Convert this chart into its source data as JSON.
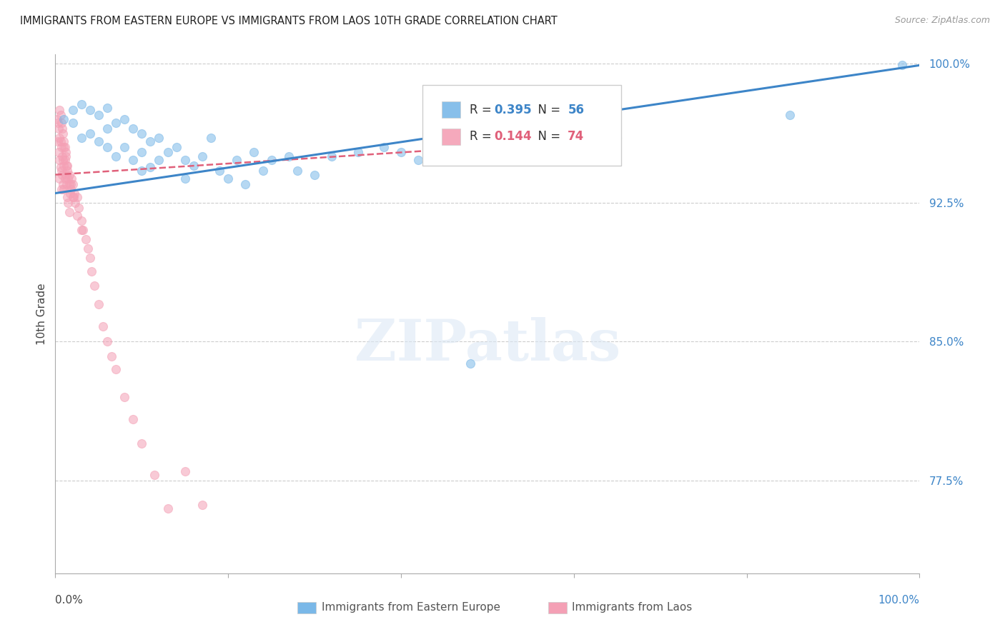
{
  "title": "IMMIGRANTS FROM EASTERN EUROPE VS IMMIGRANTS FROM LAOS 10TH GRADE CORRELATION CHART",
  "source": "Source: ZipAtlas.com",
  "ylabel": "10th Grade",
  "xlim": [
    0.0,
    1.0
  ],
  "ylim": [
    0.725,
    1.005
  ],
  "yticks": [
    0.775,
    0.85,
    0.925,
    1.0
  ],
  "ytick_labels": [
    "77.5%",
    "85.0%",
    "92.5%",
    "100.0%"
  ],
  "blue_color": "#7ab8e8",
  "pink_color": "#f4a0b5",
  "blue_line_color": "#3d85c8",
  "pink_line_color": "#e0607a",
  "scatter_alpha": 0.55,
  "marker_size": 75,
  "blue_r": 0.395,
  "blue_n": 56,
  "pink_r": 0.144,
  "pink_n": 74,
  "blue_line_x0": 0.0,
  "blue_line_y0": 0.93,
  "blue_line_x1": 1.0,
  "blue_line_y1": 0.999,
  "pink_line_x0": 0.0,
  "pink_line_y0": 0.94,
  "pink_line_x1": 0.5,
  "pink_line_y1": 0.955,
  "blue_scatter_x": [
    0.01,
    0.02,
    0.02,
    0.03,
    0.03,
    0.04,
    0.04,
    0.05,
    0.05,
    0.06,
    0.06,
    0.06,
    0.07,
    0.07,
    0.08,
    0.08,
    0.09,
    0.09,
    0.1,
    0.1,
    0.1,
    0.11,
    0.11,
    0.12,
    0.12,
    0.13,
    0.14,
    0.15,
    0.15,
    0.16,
    0.17,
    0.18,
    0.19,
    0.2,
    0.21,
    0.22,
    0.23,
    0.24,
    0.25,
    0.27,
    0.28,
    0.3,
    0.32,
    0.35,
    0.38,
    0.4,
    0.42,
    0.45,
    0.48,
    0.5,
    0.52,
    0.55,
    0.6,
    0.65,
    0.85,
    0.98
  ],
  "blue_scatter_y": [
    0.97,
    0.975,
    0.968,
    0.978,
    0.96,
    0.975,
    0.962,
    0.972,
    0.958,
    0.976,
    0.965,
    0.955,
    0.968,
    0.95,
    0.97,
    0.955,
    0.965,
    0.948,
    0.962,
    0.952,
    0.942,
    0.958,
    0.944,
    0.96,
    0.948,
    0.952,
    0.955,
    0.948,
    0.938,
    0.945,
    0.95,
    0.96,
    0.942,
    0.938,
    0.948,
    0.935,
    0.952,
    0.942,
    0.948,
    0.95,
    0.942,
    0.94,
    0.95,
    0.952,
    0.955,
    0.952,
    0.948,
    0.96,
    0.838,
    0.948,
    0.95,
    0.958,
    0.955,
    0.96,
    0.972,
    0.999
  ],
  "pink_scatter_x": [
    0.002,
    0.003,
    0.003,
    0.004,
    0.004,
    0.005,
    0.005,
    0.005,
    0.006,
    0.006,
    0.007,
    0.007,
    0.007,
    0.008,
    0.008,
    0.009,
    0.009,
    0.01,
    0.01,
    0.01,
    0.011,
    0.011,
    0.012,
    0.012,
    0.013,
    0.013,
    0.014,
    0.014,
    0.015,
    0.015,
    0.016,
    0.016,
    0.017,
    0.018,
    0.019,
    0.02,
    0.021,
    0.022,
    0.023,
    0.025,
    0.027,
    0.03,
    0.032,
    0.035,
    0.038,
    0.04,
    0.042,
    0.045,
    0.05,
    0.055,
    0.06,
    0.065,
    0.07,
    0.08,
    0.09,
    0.1,
    0.115,
    0.13,
    0.15,
    0.17,
    0.005,
    0.006,
    0.007,
    0.008,
    0.009,
    0.01,
    0.011,
    0.012,
    0.014,
    0.016,
    0.018,
    0.02,
    0.025,
    0.03
  ],
  "pink_scatter_y": [
    0.97,
    0.968,
    0.958,
    0.965,
    0.952,
    0.96,
    0.948,
    0.938,
    0.958,
    0.944,
    0.955,
    0.942,
    0.932,
    0.95,
    0.94,
    0.948,
    0.935,
    0.955,
    0.945,
    0.932,
    0.948,
    0.938,
    0.952,
    0.94,
    0.945,
    0.935,
    0.942,
    0.928,
    0.938,
    0.925,
    0.935,
    0.92,
    0.93,
    0.932,
    0.938,
    0.935,
    0.928,
    0.93,
    0.925,
    0.928,
    0.922,
    0.915,
    0.91,
    0.905,
    0.9,
    0.895,
    0.888,
    0.88,
    0.87,
    0.858,
    0.85,
    0.842,
    0.835,
    0.82,
    0.808,
    0.795,
    0.778,
    0.76,
    0.78,
    0.762,
    0.975,
    0.972,
    0.968,
    0.965,
    0.962,
    0.958,
    0.955,
    0.95,
    0.945,
    0.94,
    0.935,
    0.928,
    0.918,
    0.91
  ]
}
